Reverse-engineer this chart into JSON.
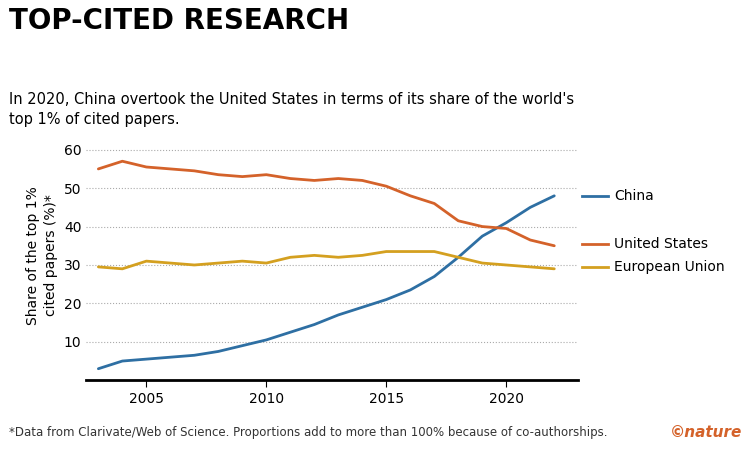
{
  "title": "TOP-CITED RESEARCH",
  "subtitle": "In 2020, China overtook the United States in terms of its share of the world's\ntop 1% of cited papers.",
  "footnote": "*Data from Clarivate/Web of Science. Proportions add to more than 100% because of co-authorships.",
  "ylabel": "Share of the top 1%\ncited papers (%)*",
  "ylim": [
    0,
    65
  ],
  "yticks": [
    0,
    10,
    20,
    30,
    40,
    50,
    60
  ],
  "xlim": [
    2002.5,
    2023.0
  ],
  "xticks": [
    2005,
    2010,
    2015,
    2020
  ],
  "background_color": "#ffffff",
  "china": {
    "label": "China",
    "color": "#2e6fa3",
    "years": [
      2003,
      2004,
      2005,
      2006,
      2007,
      2008,
      2009,
      2010,
      2011,
      2012,
      2013,
      2014,
      2015,
      2016,
      2017,
      2018,
      2019,
      2020,
      2021,
      2022
    ],
    "values": [
      3.0,
      5.0,
      5.5,
      6.0,
      6.5,
      7.5,
      9.0,
      10.5,
      12.5,
      14.5,
      17.0,
      19.0,
      21.0,
      23.5,
      27.0,
      32.0,
      37.5,
      41.0,
      45.0,
      48.0
    ]
  },
  "us": {
    "label": "United States",
    "color": "#d4622a",
    "years": [
      2003,
      2004,
      2005,
      2006,
      2007,
      2008,
      2009,
      2010,
      2011,
      2012,
      2013,
      2014,
      2015,
      2016,
      2017,
      2018,
      2019,
      2020,
      2021,
      2022
    ],
    "values": [
      55.0,
      57.0,
      55.5,
      55.0,
      54.5,
      53.5,
      53.0,
      53.5,
      52.5,
      52.0,
      52.5,
      52.0,
      50.5,
      48.0,
      46.0,
      41.5,
      40.0,
      39.5,
      36.5,
      35.0
    ]
  },
  "eu": {
    "label": "European Union",
    "color": "#d4a020",
    "years": [
      2003,
      2004,
      2005,
      2006,
      2007,
      2008,
      2009,
      2010,
      2011,
      2012,
      2013,
      2014,
      2015,
      2016,
      2017,
      2018,
      2019,
      2020,
      2021,
      2022
    ],
    "values": [
      29.5,
      29.0,
      31.0,
      30.5,
      30.0,
      30.5,
      31.0,
      30.5,
      32.0,
      32.5,
      32.0,
      32.5,
      33.5,
      33.5,
      33.5,
      32.0,
      30.5,
      30.0,
      29.5,
      29.0
    ]
  },
  "nature_logo_color": "#d4622a",
  "title_fontsize": 20,
  "subtitle_fontsize": 10.5,
  "axis_fontsize": 10,
  "label_fontsize": 10,
  "footnote_fontsize": 8.5,
  "nature_fontsize": 11
}
